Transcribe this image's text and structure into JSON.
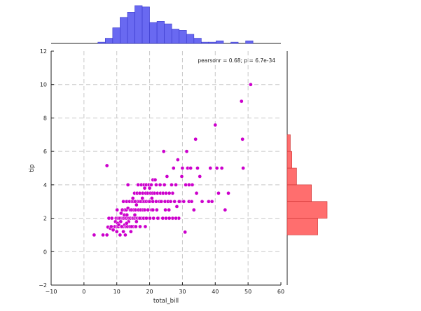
{
  "chart_data": {
    "type": "scatter",
    "title": "",
    "xlabel": "total_bill",
    "ylabel": "tip",
    "xlim": [
      -10,
      60
    ],
    "ylim": [
      -2,
      12
    ],
    "xticks": [
      -10,
      0,
      10,
      20,
      30,
      40,
      50,
      60
    ],
    "yticks": [
      -2,
      0,
      2,
      4,
      6,
      8,
      10,
      12
    ],
    "grid": true,
    "annotation": "pearsonr = 0.68; p = 6.7e-34",
    "colors": {
      "joint": "#cc00cc",
      "marginal_x": "#5c5cf0",
      "marginal_y": "#ff6666"
    },
    "points": [
      [
        3.1,
        1.0
      ],
      [
        5.8,
        1.0
      ],
      [
        7.0,
        1.0
      ],
      [
        7.3,
        1.47
      ],
      [
        7.6,
        2.0
      ],
      [
        8.0,
        1.4
      ],
      [
        8.3,
        1.5
      ],
      [
        8.5,
        2.0
      ],
      [
        7.0,
        5.15
      ],
      [
        8.9,
        1.3
      ],
      [
        9.4,
        1.5
      ],
      [
        9.6,
        1.8
      ],
      [
        9.8,
        2.0
      ],
      [
        10.0,
        1.5
      ],
      [
        10.1,
        2.5
      ],
      [
        10.3,
        1.7
      ],
      [
        10.3,
        2.0
      ],
      [
        10.5,
        1.5
      ],
      [
        10.6,
        1.6
      ],
      [
        10.6,
        2.0
      ],
      [
        11.0,
        1.0
      ],
      [
        11.0,
        2.0
      ],
      [
        11.2,
        1.8
      ],
      [
        11.3,
        2.3
      ],
      [
        11.4,
        1.5
      ],
      [
        11.6,
        2.0
      ],
      [
        11.7,
        2.5
      ],
      [
        11.9,
        2.0
      ],
      [
        12.0,
        1.5
      ],
      [
        12.0,
        3.0
      ],
      [
        12.2,
        2.0
      ],
      [
        12.3,
        2.2
      ],
      [
        12.4,
        1.6
      ],
      [
        12.5,
        2.5
      ],
      [
        12.6,
        1.0
      ],
      [
        12.7,
        2.0
      ],
      [
        12.8,
        1.5
      ],
      [
        12.9,
        2.5
      ],
      [
        13.0,
        2.0
      ],
      [
        13.0,
        3.0
      ],
      [
        13.1,
        2.2
      ],
      [
        13.3,
        1.5
      ],
      [
        13.4,
        2.6
      ],
      [
        13.4,
        4.0
      ],
      [
        13.5,
        2.0
      ],
      [
        13.6,
        1.8
      ],
      [
        13.8,
        2.0
      ],
      [
        13.9,
        3.0
      ],
      [
        14.0,
        1.5
      ],
      [
        14.1,
        2.5
      ],
      [
        14.2,
        2.0
      ],
      [
        14.3,
        1.2
      ],
      [
        14.5,
        2.5
      ],
      [
        14.7,
        3.0
      ],
      [
        14.8,
        2.0
      ],
      [
        14.9,
        3.2
      ],
      [
        15.0,
        2.0
      ],
      [
        15.0,
        1.5
      ],
      [
        15.1,
        3.0
      ],
      [
        15.2,
        2.5
      ],
      [
        15.4,
        3.5
      ],
      [
        15.5,
        2.0
      ],
      [
        15.6,
        3.0
      ],
      [
        15.7,
        2.5
      ],
      [
        15.8,
        1.5
      ],
      [
        16.0,
        2.0
      ],
      [
        16.0,
        2.8
      ],
      [
        16.2,
        3.5
      ],
      [
        16.3,
        2.0
      ],
      [
        16.4,
        3.0
      ],
      [
        16.5,
        4.0
      ],
      [
        16.6,
        2.5
      ],
      [
        16.8,
        2.0
      ],
      [
        16.9,
        3.0
      ],
      [
        17.0,
        3.5
      ],
      [
        17.1,
        1.5
      ],
      [
        17.3,
        2.5
      ],
      [
        17.4,
        3.0
      ],
      [
        17.5,
        4.0
      ],
      [
        17.6,
        2.0
      ],
      [
        17.8,
        3.2
      ],
      [
        17.9,
        3.5
      ],
      [
        18.0,
        3.0
      ],
      [
        18.0,
        2.5
      ],
      [
        18.2,
        2.0
      ],
      [
        18.3,
        4.0
      ],
      [
        18.4,
        3.0
      ],
      [
        18.5,
        2.5
      ],
      [
        18.7,
        1.5
      ],
      [
        18.8,
        3.5
      ],
      [
        19.0,
        3.0
      ],
      [
        19.0,
        4.0
      ],
      [
        19.2,
        2.0
      ],
      [
        19.4,
        3.5
      ],
      [
        19.5,
        2.5
      ],
      [
        19.7,
        3.0
      ],
      [
        19.8,
        4.0
      ],
      [
        20.0,
        3.0
      ],
      [
        20.1,
        2.0
      ],
      [
        20.3,
        3.5
      ],
      [
        20.5,
        4.0
      ],
      [
        20.6,
        2.5
      ],
      [
        20.7,
        3.2
      ],
      [
        20.9,
        3.5
      ],
      [
        21.0,
        3.0
      ],
      [
        21.0,
        4.3
      ],
      [
        21.2,
        2.0
      ],
      [
        21.5,
        3.5
      ],
      [
        21.7,
        4.3
      ],
      [
        22.0,
        3.0
      ],
      [
        22.2,
        2.5
      ],
      [
        22.4,
        3.5
      ],
      [
        22.7,
        2.0
      ],
      [
        23.0,
        3.0
      ],
      [
        23.2,
        4.0
      ],
      [
        23.3,
        3.5
      ],
      [
        23.7,
        3.0
      ],
      [
        24.0,
        2.0
      ],
      [
        24.1,
        3.5
      ],
      [
        24.3,
        6.0
      ],
      [
        24.5,
        4.0
      ],
      [
        24.7,
        3.0
      ],
      [
        25.0,
        3.5
      ],
      [
        25.3,
        4.5
      ],
      [
        25.6,
        3.0
      ],
      [
        25.9,
        2.5
      ],
      [
        26.4,
        3.0
      ],
      [
        26.7,
        4.0
      ],
      [
        27.0,
        2.0
      ],
      [
        27.3,
        5.0
      ],
      [
        27.6,
        3.0
      ],
      [
        28.0,
        4.0
      ],
      [
        28.3,
        2.7
      ],
      [
        28.6,
        5.5
      ],
      [
        28.9,
        2.0
      ],
      [
        29.3,
        3.0
      ],
      [
        29.8,
        4.5
      ],
      [
        30.0,
        5.0
      ],
      [
        30.4,
        3.0
      ],
      [
        31.0,
        4.0
      ],
      [
        31.3,
        6.0
      ],
      [
        31.6,
        5.0
      ],
      [
        32.0,
        3.0
      ],
      [
        32.5,
        5.0
      ],
      [
        32.8,
        3.0
      ],
      [
        33.0,
        4.0
      ],
      [
        34.0,
        6.73
      ],
      [
        34.3,
        3.5
      ],
      [
        34.6,
        5.0
      ],
      [
        35.3,
        4.5
      ],
      [
        36.0,
        3.0
      ],
      [
        38.0,
        3.0
      ],
      [
        38.5,
        5.0
      ],
      [
        39.0,
        3.0
      ],
      [
        40.0,
        7.58
      ],
      [
        40.5,
        5.0
      ],
      [
        41.0,
        3.5
      ],
      [
        42.0,
        5.0
      ],
      [
        43.0,
        2.5
      ],
      [
        44.0,
        3.5
      ],
      [
        48.0,
        9.0
      ],
      [
        48.3,
        6.73
      ],
      [
        48.5,
        5.0
      ],
      [
        50.8,
        10.0
      ],
      [
        26.0,
        2.0
      ],
      [
        22.5,
        2.0
      ],
      [
        25.0,
        2.0
      ],
      [
        21.0,
        2.5
      ],
      [
        19.0,
        2.0
      ],
      [
        16.0,
        1.8
      ],
      [
        14.5,
        1.5
      ],
      [
        13.0,
        1.7
      ],
      [
        12.0,
        1.2
      ],
      [
        11.5,
        1.5
      ],
      [
        10.0,
        1.2
      ],
      [
        23.5,
        3.0
      ],
      [
        20.0,
        3.8
      ],
      [
        18.5,
        3.8
      ],
      [
        17.0,
        2.0
      ],
      [
        15.5,
        2.2
      ],
      [
        28.0,
        2.0
      ],
      [
        29.0,
        3.0
      ],
      [
        30.8,
        1.17
      ],
      [
        32.0,
        4.0
      ],
      [
        33.5,
        2.5
      ],
      [
        27.0,
        3.5
      ],
      [
        24.8,
        2.5
      ],
      [
        26.0,
        3.5
      ],
      [
        22.0,
        4.0
      ],
      [
        19.5,
        2.5
      ]
    ],
    "marginal_x": {
      "bin_edges": [
        2.0,
        4.25,
        6.5,
        8.75,
        11.0,
        13.25,
        15.5,
        17.75,
        20.0,
        22.25,
        24.5,
        26.75,
        29.0,
        31.25,
        33.5,
        35.75,
        38.0,
        40.25,
        42.5,
        44.75,
        47.0,
        49.25,
        51.5
      ],
      "counts": [
        0,
        1,
        4,
        12,
        20,
        24,
        29,
        28,
        16,
        17,
        15,
        11,
        10,
        7,
        4,
        1,
        1,
        2,
        0,
        1,
        0,
        2
      ]
    },
    "marginal_y": {
      "bin_edges": [
        1.0,
        2.0,
        3.0,
        4.0,
        5.0,
        6.0,
        7.0,
        8.0
      ],
      "counts": [
        39,
        51,
        31,
        12,
        6,
        4,
        0
      ]
    }
  }
}
